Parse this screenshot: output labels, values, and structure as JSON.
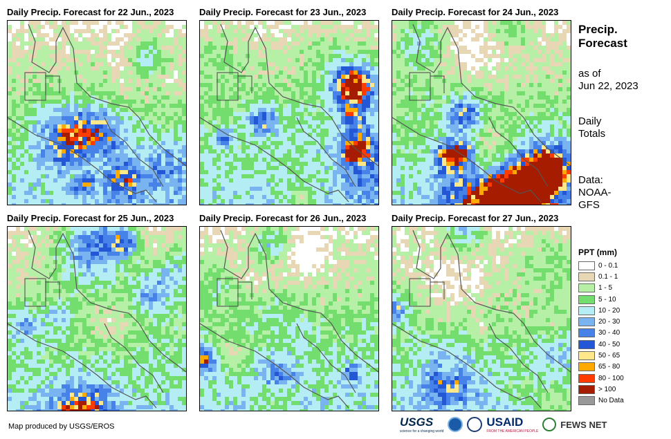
{
  "panels": [
    {
      "title": "Daily Precip. Forecast for 22 Jun., 2023",
      "seed": 11
    },
    {
      "title": "Daily Precip. Forecast for 23 Jun., 2023",
      "seed": 23
    },
    {
      "title": "Daily Precip. Forecast for 24 Jun., 2023",
      "seed": 37
    },
    {
      "title": "Daily Precip. Forecast for 25 Jun., 2023",
      "seed": 41
    },
    {
      "title": "Daily Precip. Forecast for 26 Jun., 2023",
      "seed": 53
    },
    {
      "title": "Daily Precip. Forecast for 27 Jun., 2023",
      "seed": 67
    }
  ],
  "side": {
    "title_line1": "Precip.",
    "title_line2": "Forecast",
    "asof_line1": "as of",
    "asof_line2": "Jun 22, 2023",
    "daily_line1": "Daily",
    "daily_line2": "Totals",
    "data_line1": "Data:",
    "data_line2": "NOAA-",
    "data_line3": "GFS"
  },
  "legend": {
    "title": "PPT (mm)",
    "items": [
      {
        "label": "0 - 0.1",
        "color": "#ffffff"
      },
      {
        "label": "0.1 - 1",
        "color": "#e8d7b4"
      },
      {
        "label": "1 - 5",
        "color": "#b6f0a6"
      },
      {
        "label": "5 - 10",
        "color": "#73de6e"
      },
      {
        "label": "10 - 20",
        "color": "#b4eef4"
      },
      {
        "label": "20 - 30",
        "color": "#7ab4f0"
      },
      {
        "label": "30 - 40",
        "color": "#4682e8"
      },
      {
        "label": "40 - 50",
        "color": "#2457d6"
      },
      {
        "label": "50 - 65",
        "color": "#ffe88a"
      },
      {
        "label": "65 - 80",
        "color": "#ffaa00"
      },
      {
        "label": "80 - 100",
        "color": "#ff3c00"
      },
      {
        "label": "> 100",
        "color": "#a61c00"
      },
      {
        "label": "No Data",
        "color": "#999999"
      }
    ]
  },
  "credit": "Map produced by USGS/EROS",
  "logos": {
    "usgs": "USGS",
    "usgs_sub": "science for a changing world",
    "usaid": "USAID",
    "usaid_sub": "FROM THE AMERICAN PEOPLE",
    "fews": "FEWS NET"
  }
}
